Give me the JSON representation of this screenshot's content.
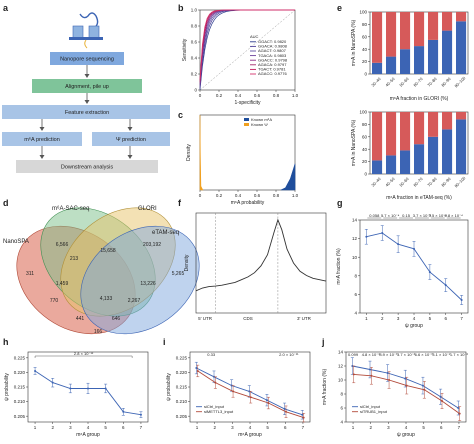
{
  "panels": {
    "a": {
      "label": "a",
      "steps": [
        "Nanopore sequencing",
        "Alignment, pile up",
        "Feature extraction",
        "m⁶A prediction",
        "Ψ prediction",
        "Downstream analysis"
      ]
    },
    "d": {
      "label": "d",
      "sets": [
        "NanoSPA",
        "m⁶A-SAC-seq",
        "GLORI",
        "eTAM-seq"
      ],
      "region_values": [
        "6,566",
        "203,192",
        "311",
        "213",
        "15,658",
        "5,265",
        "1,459",
        "13,226",
        "770",
        "4,133",
        "2,267",
        "441",
        "646",
        "166"
      ]
    }
  },
  "chart_data": [
    {
      "panel": "b",
      "label": "b",
      "type": "line",
      "xlabel": "1-specificity",
      "ylabel": "Sensitivity",
      "xlim": [
        0,
        1
      ],
      "ylim": [
        0,
        1
      ],
      "xticks": [
        "0",
        "0.2",
        "0.4",
        "0.6",
        "0.8",
        "1.0"
      ],
      "yticks": [
        "0",
        "0.2",
        "0.4",
        "0.6",
        "0.8",
        "1.0"
      ],
      "legend_title": "AUC",
      "legend_position": "bottom-right",
      "series": [
        {
          "name": "GGACT: 0.9820",
          "color": "#2b3a8c"
        },
        {
          "name": "GGACA: 0.9808",
          "color": "#4c3f99"
        },
        {
          "name": "AGACT: 0.9807",
          "color": "#5e4fa2"
        },
        {
          "name": "TGACA: 0.9803",
          "color": "#6a3d9a"
        },
        {
          "name": "GGACC: 0.9798",
          "color": "#8c2d87"
        },
        {
          "name": "AGACA: 0.9797",
          "color": "#a4286a"
        },
        {
          "name": "TGACT: 0.9781",
          "color": "#c2185b"
        },
        {
          "name": "AGACC: 0.9776",
          "color": "#d6336c"
        }
      ]
    },
    {
      "panel": "c",
      "label": "c",
      "type": "area",
      "xlabel": "m⁶A probability",
      "ylabel": "Density",
      "xlim": [
        0,
        1
      ],
      "xticks": [
        "0",
        "0.2",
        "0.4",
        "0.6",
        "0.8",
        "1.0"
      ],
      "series": [
        {
          "name": "Known m⁶A",
          "color": "#1f4e9c",
          "x": [
            0.85,
            0.9,
            0.95,
            1.0
          ],
          "y": [
            0.0,
            0.03,
            0.15,
            0.35
          ]
        },
        {
          "name": "Known Ψ",
          "color": "#f0a020",
          "x": [
            0.0,
            0.003,
            0.01,
            0.03
          ],
          "y": [
            1.0,
            0.5,
            0.05,
            0.0
          ]
        }
      ]
    },
    {
      "panel": "e-top",
      "label": "e",
      "type": "bar",
      "xlabel": "m⁶A fraction in GLORI (%)",
      "ylabel": "m⁶A in NanoSPA (%)",
      "categories": [
        "30–40",
        "40–50",
        "50–60",
        "60–70",
        "70–80",
        "80–90",
        "90–100"
      ],
      "ylim": [
        0,
        100
      ],
      "yticks": [
        "0",
        "20",
        "40",
        "60",
        "80",
        "100"
      ],
      "series": [
        {
          "name": "m⁶A",
          "color": "#3c64b4",
          "values": [
            18,
            28,
            40,
            45,
            55,
            70,
            85
          ]
        },
        {
          "name": "other",
          "color": "#d65a5a",
          "values": [
            82,
            72,
            60,
            55,
            45,
            30,
            15
          ]
        }
      ]
    },
    {
      "panel": "e-bottom",
      "label": "",
      "type": "bar",
      "xlabel": "m⁶A fraction in eTAM-seq (%)",
      "ylabel": "m⁶A in NanoSPA (%)",
      "categories": [
        "30–40",
        "40–50",
        "50–60",
        "60–70",
        "70–80",
        "80–90",
        "90–100"
      ],
      "ylim": [
        0,
        100
      ],
      "yticks": [
        "0",
        "20",
        "40",
        "60",
        "80",
        "100"
      ],
      "series": [
        {
          "name": "m⁶A",
          "color": "#3c64b4",
          "values": [
            22,
            30,
            38,
            48,
            60,
            72,
            88
          ]
        },
        {
          "name": "other",
          "color": "#d65a5a",
          "values": [
            78,
            70,
            62,
            52,
            40,
            28,
            12
          ]
        }
      ]
    },
    {
      "panel": "f",
      "label": "f",
      "type": "line",
      "ylabel": "Density",
      "xticks": [
        "5' UTR",
        "CDS",
        "3' UTR"
      ],
      "series": [
        {
          "name": "density",
          "color": "#333333",
          "x": [
            0,
            0.05,
            0.1,
            0.15,
            0.2,
            0.25,
            0.3,
            0.35,
            0.4,
            0.45,
            0.5,
            0.55,
            0.6,
            0.63,
            0.66,
            0.7,
            0.75,
            0.8,
            0.85,
            0.9,
            0.95,
            1.0
          ],
          "y": [
            0.8,
            0.9,
            0.95,
            0.97,
            1.0,
            1.05,
            1.1,
            1.2,
            1.3,
            1.45,
            1.7,
            2.1,
            2.9,
            3.35,
            3.0,
            2.3,
            1.8,
            1.5,
            1.35,
            1.25,
            1.2,
            1.15
          ]
        }
      ]
    },
    {
      "panel": "g",
      "label": "g",
      "type": "line",
      "xlabel": "ψ group",
      "ylabel": "m⁶A fraction (%)",
      "x": [
        1,
        2,
        3,
        4,
        5,
        6,
        7
      ],
      "xlim": [
        0.6,
        7.4
      ],
      "ylim": [
        4,
        14
      ],
      "yticks": [
        "4",
        "6",
        "8",
        "10",
        "12",
        "14"
      ],
      "pvalues": [
        "0.058",
        "5.7 × 10⁻⁴",
        "0.15",
        "3.7 × 10⁻⁵",
        "3.5 × 10⁻⁴",
        "6.8 × 10⁻⁴"
      ],
      "series": [
        {
          "name": "m⁶A fraction",
          "color": "#3c64b4",
          "values": [
            12.2,
            12.6,
            11.4,
            10.9,
            8.4,
            7.0,
            5.4
          ],
          "err": [
            0.8,
            0.8,
            0.9,
            0.8,
            0.8,
            0.7,
            0.5
          ]
        }
      ]
    },
    {
      "panel": "h",
      "label": "h",
      "type": "line",
      "xlabel": "m⁶A group",
      "ylabel": "ψ probability",
      "x": [
        1,
        2,
        3,
        4,
        5,
        6,
        7
      ],
      "xlim": [
        0.6,
        7.4
      ],
      "ylim": [
        0.203,
        0.227
      ],
      "yticks": [
        "0.205",
        "0.210",
        "0.215",
        "0.220",
        "0.225"
      ],
      "pvalues": [
        "2.8 × 10⁻¹²"
      ],
      "series": [
        {
          "name": "ψ probability",
          "color": "#3c64b4",
          "values": [
            0.2205,
            0.2165,
            0.2145,
            0.2145,
            0.2145,
            0.2065,
            0.2055
          ],
          "err": [
            0.0012,
            0.0015,
            0.0015,
            0.0018,
            0.0015,
            0.0012,
            0.001
          ]
        }
      ]
    },
    {
      "panel": "i",
      "label": "i",
      "type": "line",
      "xlabel": "m⁶A group",
      "ylabel": "ψ probability",
      "x": [
        1,
        2,
        3,
        4,
        5,
        6,
        7
      ],
      "xlim": [
        0.6,
        7.4
      ],
      "ylim": [
        0.203,
        0.227
      ],
      "yticks": [
        "0.205",
        "0.210",
        "0.215",
        "0.220",
        "0.225"
      ],
      "pvalues": [
        "0.33",
        "2.0 × 10⁻¹¹"
      ],
      "legend_position": "bottom-left",
      "series": [
        {
          "name": "siCtrl_input",
          "color": "#3c64b4",
          "values": [
            0.2215,
            0.2185,
            0.2155,
            0.2135,
            0.2105,
            0.2075,
            0.2055
          ],
          "err": [
            0.002,
            0.002,
            0.002,
            0.002,
            0.002,
            0.002,
            0.0015
          ]
        },
        {
          "name": "siMETTL3_input",
          "color": "#b24a3a",
          "values": [
            0.2205,
            0.2165,
            0.2135,
            0.2115,
            0.2095,
            0.2065,
            0.2045
          ],
          "err": [
            0.002,
            0.002,
            0.002,
            0.002,
            0.002,
            0.002,
            0.0015
          ]
        }
      ]
    },
    {
      "panel": "j",
      "label": "j",
      "type": "line",
      "xlabel": "ψ group",
      "ylabel": "m⁶A fraction (%)",
      "x": [
        1,
        2,
        3,
        4,
        5,
        6,
        7
      ],
      "xlim": [
        0.6,
        7.4
      ],
      "ylim": [
        4,
        14
      ],
      "yticks": [
        "4",
        "6",
        "8",
        "10",
        "12",
        "14"
      ],
      "pvalues": [
        "0.099",
        "4.8 × 10⁻³",
        "8.9 × 10⁻³",
        "3.7 × 10⁻³",
        "6.6 × 10⁻³",
        "3.1 × 10⁻²",
        "1.7 × 10⁻²"
      ],
      "legend_position": "bottom-left",
      "series": [
        {
          "name": "siCtrl_input",
          "color": "#3c64b4",
          "values": [
            12.0,
            11.5,
            11.0,
            10.2,
            9.2,
            7.6,
            6.0
          ],
          "err": [
            1.2,
            1.2,
            1.2,
            1.2,
            1.2,
            1.1,
            1.0
          ]
        },
        {
          "name": "siTRUB1_input",
          "color": "#b24a3a",
          "values": [
            10.8,
            10.6,
            10.0,
            9.2,
            8.6,
            7.0,
            5.2
          ],
          "err": [
            1.2,
            1.2,
            1.2,
            1.2,
            1.2,
            1.1,
            1.0
          ]
        }
      ]
    }
  ]
}
